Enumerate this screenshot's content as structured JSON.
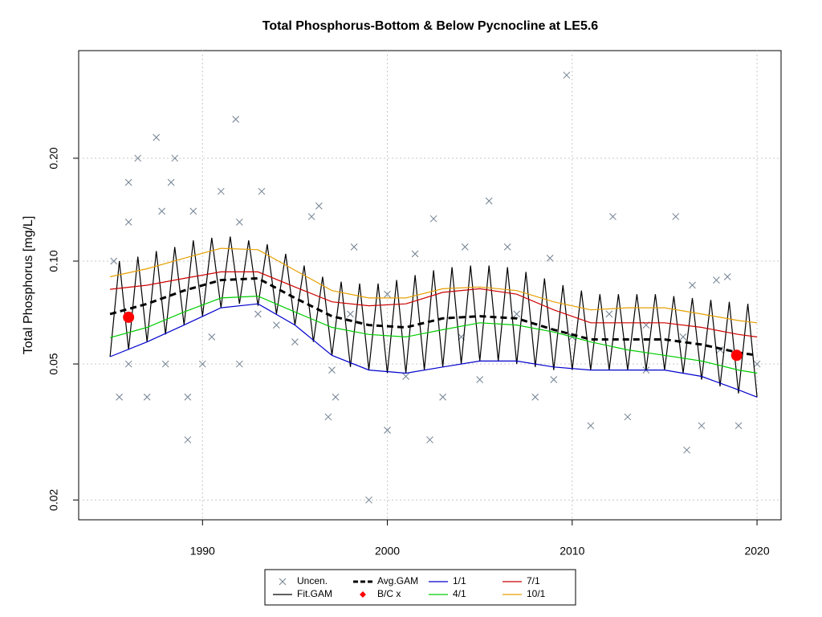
{
  "chart_data": {
    "type": "line",
    "title": "Total Phosphorus-Bottom & Below Pycnocline at LE5.6",
    "ylabel": "Total Phosphorus [mg/L]",
    "log_y": true,
    "grid": true,
    "legend": "bottom",
    "xlim": [
      1983.3,
      2021.3
    ],
    "ylim": [
      0.0175,
      0.413
    ],
    "xticks": [
      1990,
      2000,
      2010,
      2020
    ],
    "yticks": [
      0.02,
      0.05,
      {
        "value": 0.1,
        "label": "0.10"
      },
      {
        "value": 0.2,
        "label": "0.20"
      }
    ],
    "points": {
      "name": "Uncen.",
      "color": "#708090",
      "x": [
        2009.7,
        1991.8,
        1987.5,
        1986.5,
        1988.5,
        1986,
        1988.3,
        1991,
        1993.2,
        2005.5,
        1996.3,
        1995.9,
        2002.5,
        2012.2,
        2015.6,
        1987.8,
        1989.5,
        1992,
        1986,
        1998.2,
        2001.5,
        2004.2,
        2008.8,
        2006.5,
        1985.2,
        2016.5,
        2017.8,
        2018.4,
        1999,
        1989.2,
        2016.2,
        2002.3,
        2000,
        1997.2,
        1996.8,
        1985.5,
        1987,
        1989.2,
        2003,
        2008,
        2011,
        2013,
        2017,
        2019,
        1990.5,
        1993,
        1994,
        1995,
        1998,
        2000,
        2004,
        2007,
        2010,
        2012,
        2014,
        2016,
        2018,
        2020,
        1986,
        1988,
        1990,
        1992,
        2005,
        2009,
        2014,
        1997,
        2001
      ],
      "values": [
        0.35,
        0.26,
        0.23,
        0.2,
        0.2,
        0.17,
        0.17,
        0.16,
        0.16,
        0.15,
        0.145,
        0.135,
        0.133,
        0.135,
        0.135,
        0.14,
        0.14,
        0.13,
        0.13,
        0.11,
        0.105,
        0.11,
        0.102,
        0.11,
        0.1,
        0.085,
        0.088,
        0.09,
        0.02,
        0.03,
        0.028,
        0.03,
        0.032,
        0.04,
        0.035,
        0.04,
        0.04,
        0.04,
        0.04,
        0.04,
        0.033,
        0.035,
        0.033,
        0.033,
        0.06,
        0.07,
        0.065,
        0.058,
        0.07,
        0.08,
        0.06,
        0.07,
        0.06,
        0.07,
        0.065,
        0.06,
        0.055,
        0.05,
        0.05,
        0.05,
        0.05,
        0.05,
        0.045,
        0.045,
        0.048,
        0.048,
        0.046
      ]
    },
    "series": [
      {
        "name": "Fit.GAM",
        "color": "#000000",
        "dash": false,
        "x": [
          1985,
          1985.5,
          1986,
          1986.5,
          1987,
          1987.5,
          1988,
          1988.5,
          1989,
          1989.5,
          1990,
          1990.5,
          1991,
          1991.5,
          1992,
          1992.5,
          1993,
          1993.5,
          1994,
          1994.5,
          1995,
          1995.5,
          1996,
          1996.5,
          1997,
          1997.5,
          1998,
          1998.5,
          1999,
          1999.5,
          2000,
          2000.5,
          2001,
          2001.5,
          2002,
          2002.5,
          2003,
          2003.5,
          2004,
          2004.5,
          2005,
          2005.5,
          2006,
          2006.5,
          2007,
          2007.5,
          2008,
          2008.5,
          2009,
          2009.5,
          2010,
          2010.5,
          2011,
          2011.5,
          2012,
          2012.5,
          2013,
          2013.5,
          2014,
          2014.5,
          2015,
          2015.5,
          2016,
          2016.5,
          2017,
          2017.5,
          2018,
          2018.5,
          2019,
          2019.5,
          2020
        ],
        "values": [
          0.0525,
          0.1,
          0.055,
          0.103,
          0.058,
          0.107,
          0.061,
          0.11,
          0.065,
          0.115,
          0.069,
          0.117,
          0.073,
          0.118,
          0.075,
          0.115,
          0.074,
          0.112,
          0.07,
          0.105,
          0.065,
          0.097,
          0.058,
          0.09,
          0.053,
          0.087,
          0.049,
          0.086,
          0.048,
          0.086,
          0.047,
          0.088,
          0.047,
          0.091,
          0.048,
          0.094,
          0.049,
          0.096,
          0.05,
          0.097,
          0.051,
          0.097,
          0.051,
          0.096,
          0.05,
          0.093,
          0.049,
          0.089,
          0.048,
          0.085,
          0.048,
          0.082,
          0.048,
          0.08,
          0.048,
          0.08,
          0.048,
          0.08,
          0.048,
          0.08,
          0.048,
          0.079,
          0.047,
          0.078,
          0.045,
          0.077,
          0.043,
          0.076,
          0.041,
          0.075,
          0.04
        ]
      },
      {
        "name": "Avg.GAM",
        "color": "#000000",
        "dash": true,
        "x": [
          1985,
          1987,
          1989,
          1991,
          1993,
          1995,
          1997,
          1999,
          2001,
          2003,
          2005,
          2007,
          2009,
          2011,
          2013,
          2015,
          2017,
          2019,
          2020
        ],
        "values": [
          0.07,
          0.075,
          0.082,
          0.088,
          0.089,
          0.078,
          0.069,
          0.065,
          0.064,
          0.068,
          0.069,
          0.068,
          0.063,
          0.059,
          0.059,
          0.059,
          0.057,
          0.054,
          0.053
        ]
      },
      {
        "name": "1/1",
        "color": "#0000cd",
        "dash": false,
        "x": [
          1985,
          1987,
          1989,
          1991,
          1993,
          1995,
          1997,
          1999,
          2001,
          2003,
          2005,
          2007,
          2009,
          2011,
          2013,
          2015,
          2017,
          2019,
          2020
        ],
        "values": [
          0.0525,
          0.058,
          0.065,
          0.073,
          0.075,
          0.065,
          0.053,
          0.048,
          0.047,
          0.049,
          0.051,
          0.051,
          0.049,
          0.048,
          0.048,
          0.048,
          0.046,
          0.042,
          0.04
        ]
      },
      {
        "name": "4/1",
        "color": "#00cd00",
        "dash": false,
        "x": [
          1985,
          1987,
          1989,
          1991,
          1993,
          1995,
          1997,
          1999,
          2001,
          2003,
          2005,
          2007,
          2009,
          2011,
          2013,
          2015,
          2017,
          2019,
          2020
        ],
        "values": [
          0.0597,
          0.064,
          0.071,
          0.078,
          0.079,
          0.071,
          0.064,
          0.061,
          0.06,
          0.063,
          0.066,
          0.065,
          0.062,
          0.058,
          0.055,
          0.053,
          0.051,
          0.048,
          0.047
        ]
      },
      {
        "name": "7/1",
        "color": "#cd0000",
        "dash": false,
        "x": [
          1985,
          1987,
          1989,
          1991,
          1993,
          1995,
          1997,
          1999,
          2001,
          2003,
          2005,
          2007,
          2009,
          2011,
          2013,
          2015,
          2017,
          2019,
          2020
        ],
        "values": [
          0.0827,
          0.085,
          0.089,
          0.093,
          0.093,
          0.084,
          0.076,
          0.074,
          0.075,
          0.081,
          0.083,
          0.08,
          0.072,
          0.066,
          0.066,
          0.066,
          0.064,
          0.061,
          0.06
        ]
      },
      {
        "name": "10/1",
        "color": "#e69f00",
        "dash": false,
        "x": [
          1985,
          1987,
          1989,
          1991,
          1993,
          1995,
          1997,
          1999,
          2001,
          2003,
          2005,
          2007,
          2009,
          2011,
          2013,
          2015,
          2017,
          2019,
          2020
        ],
        "values": [
          0.09,
          0.095,
          0.102,
          0.109,
          0.108,
          0.094,
          0.082,
          0.078,
          0.078,
          0.083,
          0.084,
          0.082,
          0.076,
          0.072,
          0.073,
          0.073,
          0.07,
          0.067,
          0.066
        ]
      }
    ],
    "markers": {
      "name": "B/C x",
      "color": "#ff0000",
      "x": [
        1986,
        2018.9
      ],
      "values": [
        0.0685,
        0.053
      ]
    }
  }
}
